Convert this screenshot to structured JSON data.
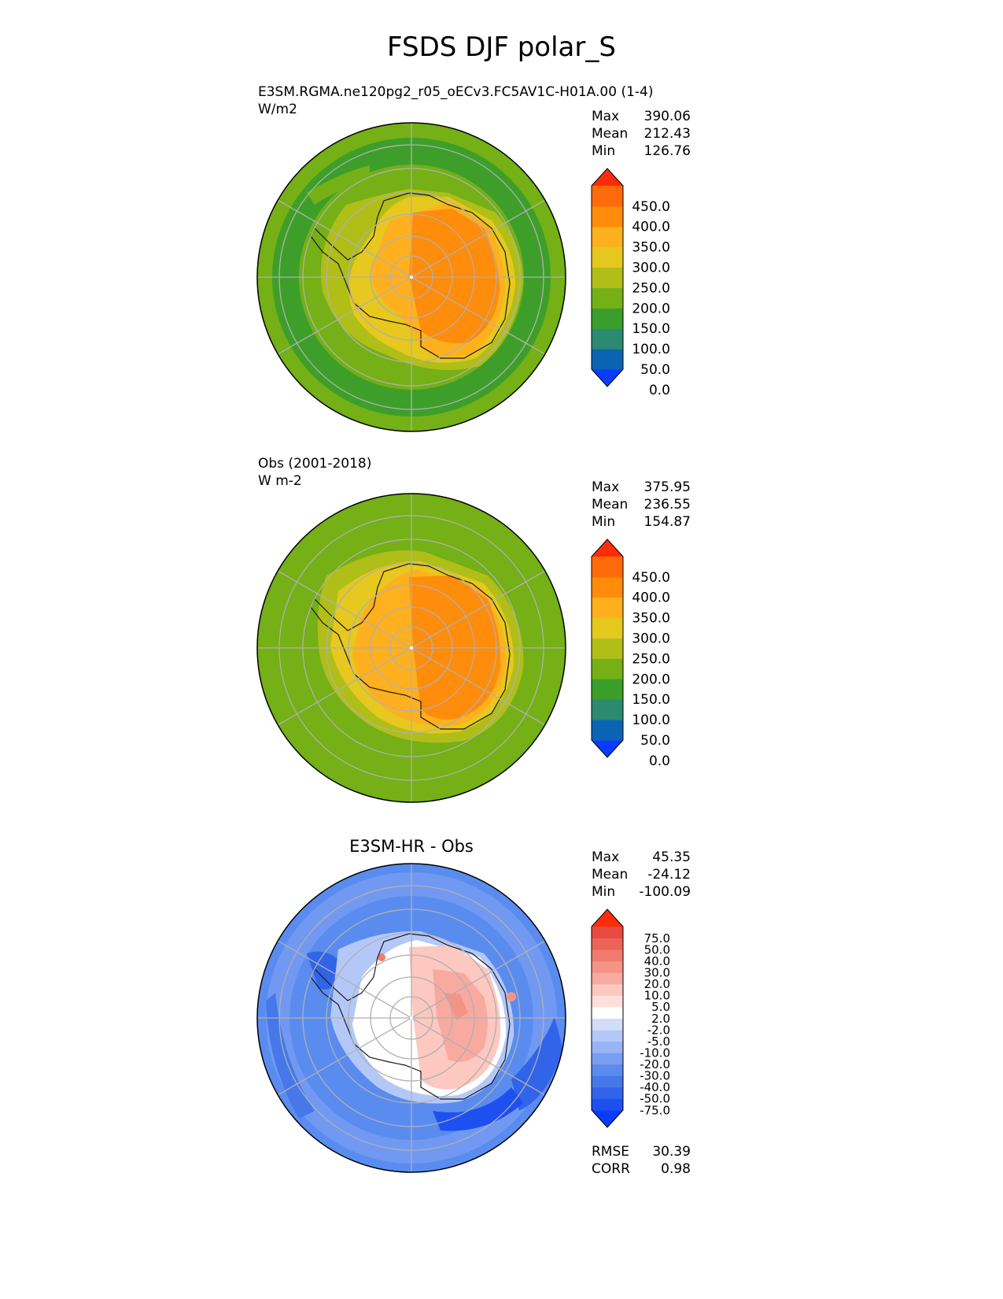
{
  "figure": {
    "title": "FSDS DJF polar_S"
  },
  "panels": [
    {
      "title_line1": "E3SM.RGMA.ne120pg2_r05_oECv3.FC5AV1C-H01A.00 (1-4)",
      "title_line2": "W/m2",
      "stats": [
        {
          "label": "Max",
          "value": "390.06"
        },
        {
          "label": "Mean",
          "value": "212.43"
        },
        {
          "label": "Min",
          "value": "126.76"
        }
      ],
      "colorbar": {
        "colors": [
          "#0a3cff",
          "#0a64b4",
          "#2c8a70",
          "#3a9e2a",
          "#74b016",
          "#b0be18",
          "#e6c81e",
          "#ffb01e",
          "#ff8c0a",
          "#ff6a0a",
          "#ff2c0a"
        ],
        "tick_labels": [
          "450.0",
          "400.0",
          "350.0",
          "300.0",
          "250.0",
          "200.0",
          "150.0",
          "100.0",
          "50.0",
          "0.0"
        ]
      }
    },
    {
      "title_line1": "Obs (2001-2018)",
      "title_line2": "W m-2",
      "stats": [
        {
          "label": "Max",
          "value": "375.95"
        },
        {
          "label": "Mean",
          "value": "236.55"
        },
        {
          "label": "Min",
          "value": "154.87"
        }
      ],
      "colorbar": {
        "colors": [
          "#0a3cff",
          "#0a64b4",
          "#2c8a70",
          "#3a9e2a",
          "#74b016",
          "#b0be18",
          "#e6c81e",
          "#ffb01e",
          "#ff8c0a",
          "#ff6a0a",
          "#ff2c0a"
        ],
        "tick_labels": [
          "450.0",
          "400.0",
          "350.0",
          "300.0",
          "250.0",
          "200.0",
          "150.0",
          "100.0",
          "50.0",
          "0.0"
        ]
      }
    },
    {
      "title": "E3SM-HR - Obs",
      "stats": [
        {
          "label": "Max",
          "value": "45.35"
        },
        {
          "label": "Mean",
          "value": "-24.12"
        },
        {
          "label": "Min",
          "value": "-100.09"
        }
      ],
      "colorbar": {
        "colors": [
          "#0a3cff",
          "#1e50f0",
          "#3264ea",
          "#4678ea",
          "#5a8cf0",
          "#7a9ef2",
          "#98b4f4",
          "#b4c8f8",
          "#d2ddfa",
          "#ffffff",
          "#fde0dc",
          "#fcc8c0",
          "#f8aaa0",
          "#f49486",
          "#f07c6e",
          "#ec6458",
          "#e84a40",
          "#ff2c0a"
        ],
        "tick_labels": [
          "75.0",
          "50.0",
          "40.0",
          "30.0",
          "20.0",
          "10.0",
          "5.0",
          "2.0",
          "-2.0",
          "-5.0",
          "-10.0",
          "-20.0",
          "-30.0",
          "-40.0",
          "-50.0",
          "-75.0"
        ]
      },
      "metrics": [
        {
          "label": "RMSE",
          "value": "30.39"
        },
        {
          "label": "CORR",
          "value": "0.98"
        }
      ]
    }
  ]
}
